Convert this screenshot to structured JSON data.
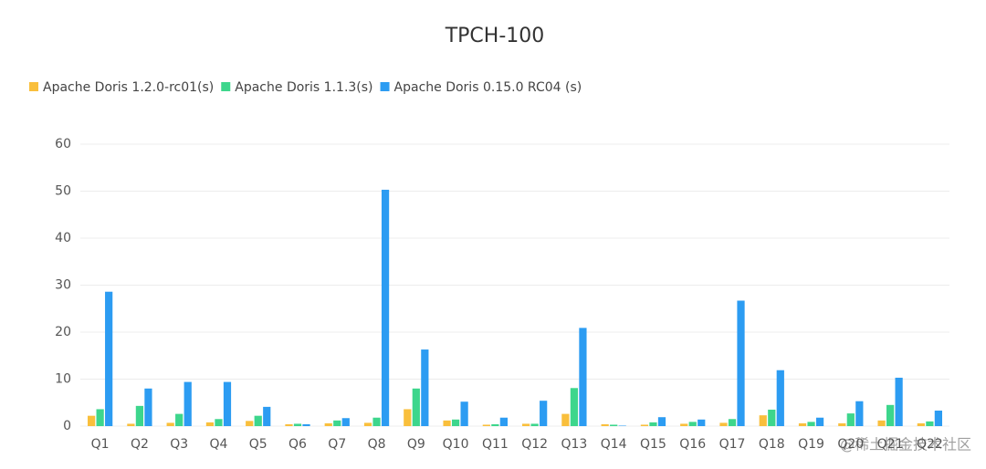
{
  "chart_data": {
    "type": "bar",
    "title": "TPCH-100",
    "categories": [
      "Q1",
      "Q2",
      "Q3",
      "Q4",
      "Q5",
      "Q6",
      "Q7",
      "Q8",
      "Q9",
      "Q10",
      "Q11",
      "Q12",
      "Q13",
      "Q14",
      "Q15",
      "Q16",
      "Q17",
      "Q18",
      "Q19",
      "Q20",
      "Q21",
      "Q22"
    ],
    "series": [
      {
        "name": "Apache Doris 1.2.0-rc01(s)",
        "color": "#f9bf3c",
        "values": [
          2.2,
          0.5,
          0.7,
          0.8,
          1.1,
          0.4,
          0.6,
          0.7,
          3.6,
          1.2,
          0.3,
          0.5,
          2.6,
          0.4,
          0.3,
          0.5,
          0.7,
          2.3,
          0.6,
          0.6,
          1.2,
          0.6
        ]
      },
      {
        "name": "Apache Doris 1.1.3(s)",
        "color": "#3dd68c",
        "values": [
          3.6,
          4.3,
          2.6,
          1.5,
          2.2,
          0.5,
          1.2,
          1.8,
          8.0,
          1.4,
          0.4,
          0.5,
          8.1,
          0.3,
          0.8,
          0.9,
          1.5,
          3.5,
          0.9,
          2.7,
          4.5,
          1.0
        ]
      },
      {
        "name": "Apache Doris 0.15.0 RC04 (s)",
        "color": "#2c9cf2",
        "values": [
          28.6,
          8.0,
          9.4,
          9.4,
          4.1,
          0.4,
          1.7,
          50.3,
          16.3,
          5.2,
          1.8,
          5.4,
          20.9,
          0.1,
          1.9,
          1.4,
          26.7,
          11.9,
          1.8,
          5.3,
          10.3,
          3.3
        ]
      }
    ],
    "ylim": [
      0,
      60
    ],
    "yticks": [
      0,
      10,
      20,
      30,
      40,
      50,
      60
    ],
    "grid": true,
    "legend": "top-left",
    "watermark": "@稀土掘金技术社区"
  }
}
